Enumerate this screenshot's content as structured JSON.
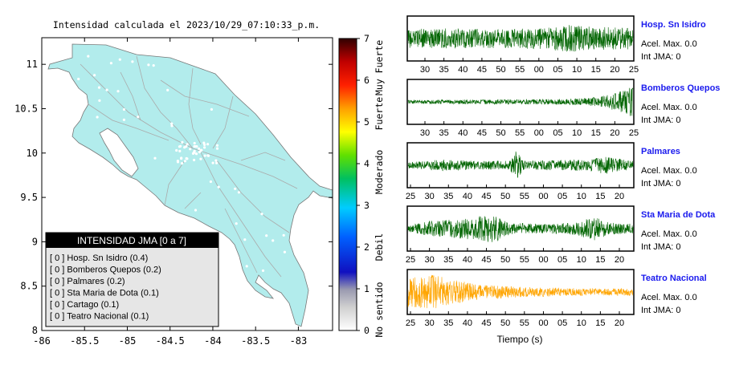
{
  "map": {
    "title": "Intensidad calculada el 2023/10/29_07:10:33_p.m.",
    "x_ticks": [
      "-86",
      "-85.5",
      "-85",
      "-84.5",
      "-84",
      "-83.5",
      "-83"
    ],
    "y_ticks": [
      "11",
      "10.5",
      "10",
      "9.5",
      "9",
      "8.5",
      "8"
    ],
    "xlim": [
      -86,
      -82.6
    ],
    "ylim": [
      8,
      11.3
    ],
    "legend": {
      "header": "INTENSIDAD JMA [0 a 7]",
      "items": [
        "[ 0 ]  Hosp. Sn Isidro (0.4)",
        "[ 0 ]  Bomberos Quepos (0.2)",
        "[ 0 ]  Palmares (0.2)",
        "[ 0 ]  Sta Maria de Dota (0.1)",
        "[ 0 ]  Cartago (0.1)",
        "[ 0 ]  Teatro Nacional (0.1)"
      ]
    },
    "colors": {
      "land": "#b2ecec",
      "roads": "#aaaaaa",
      "border": "#777777",
      "legend_header_bg": "#000000",
      "legend_bg": "#e6e6e6"
    }
  },
  "colorbar": {
    "ticks": [
      "0",
      "1",
      "2",
      "3",
      "4",
      "5",
      "6",
      "7"
    ],
    "labels": [
      "No sentido",
      "Debil",
      "Moderado",
      "Fuerte",
      "Muy Fuerte"
    ]
  },
  "chart_data": [
    {
      "type": "line",
      "name": "Hosp. Sn Isidro",
      "acel": "Acel. Max. 0.0",
      "int": "Int JMA: 0",
      "x_ticks": [
        "30",
        "35",
        "40",
        "45",
        "50",
        "55",
        "00",
        "05",
        "10",
        "15",
        "20",
        "25"
      ],
      "color": "#006400",
      "amplitude": 0.65,
      "profile": [
        [
          0,
          0.7
        ],
        [
          0.2,
          0.75
        ],
        [
          0.4,
          0.7
        ],
        [
          0.6,
          0.8
        ],
        [
          0.72,
          1.0
        ],
        [
          0.85,
          0.85
        ],
        [
          1,
          0.8
        ]
      ]
    },
    {
      "type": "line",
      "name": "Bomberos Quepos",
      "acel": "Acel. Max. 0.0",
      "int": "Int JMA: 0",
      "x_ticks": [
        "30",
        "35",
        "40",
        "45",
        "50",
        "55",
        "00",
        "05",
        "10",
        "15",
        "20",
        "25"
      ],
      "color": "#006400",
      "amplitude": 0.75,
      "profile": [
        [
          0,
          0.12
        ],
        [
          0.4,
          0.15
        ],
        [
          0.7,
          0.18
        ],
        [
          0.85,
          0.3
        ],
        [
          0.93,
          0.6
        ],
        [
          1,
          1.0
        ]
      ]
    },
    {
      "type": "line",
      "name": "Palmares",
      "acel": "Acel. Max. 0.0",
      "int": "Int JMA: 0",
      "x_ticks": [
        "25",
        "30",
        "35",
        "40",
        "45",
        "50",
        "55",
        "00",
        "05",
        "10",
        "15",
        "20"
      ],
      "color": "#006400",
      "amplitude": 0.7,
      "profile": [
        [
          0,
          0.2
        ],
        [
          0.15,
          0.4
        ],
        [
          0.3,
          0.3
        ],
        [
          0.45,
          0.3
        ],
        [
          0.48,
          1.0
        ],
        [
          0.52,
          0.3
        ],
        [
          0.8,
          0.4
        ],
        [
          0.88,
          0.6
        ],
        [
          1,
          0.3
        ]
      ]
    },
    {
      "type": "line",
      "name": "Sta Maria de Dota",
      "acel": "Acel. Max. 0.0",
      "int": "Int JMA: 0",
      "x_ticks": [
        "25",
        "30",
        "35",
        "40",
        "45",
        "50",
        "55",
        "00",
        "05",
        "10",
        "15",
        "20"
      ],
      "color": "#006400",
      "amplitude": 0.75,
      "profile": [
        [
          0,
          0.2
        ],
        [
          0.1,
          0.5
        ],
        [
          0.2,
          0.6
        ],
        [
          0.38,
          0.9
        ],
        [
          0.45,
          0.4
        ],
        [
          0.6,
          0.3
        ],
        [
          0.75,
          0.4
        ],
        [
          0.82,
          0.8
        ],
        [
          0.9,
          0.4
        ],
        [
          1,
          0.3
        ]
      ]
    },
    {
      "type": "line",
      "name": "Teatro Nacional",
      "acel": "Acel. Max. 0.0",
      "int": "Int JMA: 0",
      "x_ticks": [
        "25",
        "30",
        "35",
        "40",
        "45",
        "50",
        "55",
        "00",
        "05",
        "10",
        "15",
        "20"
      ],
      "color": "#ffa500",
      "amplitude": 0.85,
      "profile": [
        [
          0,
          0.9
        ],
        [
          0.1,
          1.0
        ],
        [
          0.2,
          0.7
        ],
        [
          0.3,
          0.45
        ],
        [
          0.5,
          0.3
        ],
        [
          0.8,
          0.2
        ],
        [
          1,
          0.2
        ]
      ]
    }
  ],
  "waveform_xlabel": "Tiempo (s)"
}
